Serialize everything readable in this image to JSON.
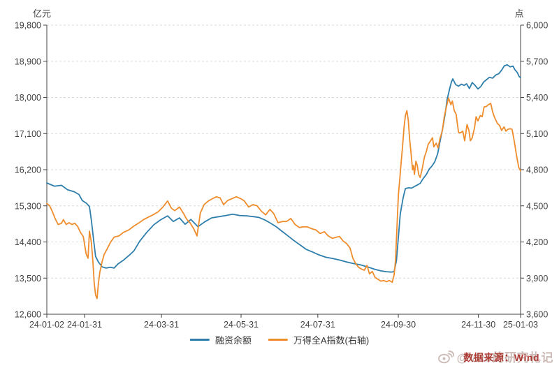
{
  "watermark": {
    "handle": "@Vito的研究札记",
    "source": "数据来源：Wind"
  },
  "chart_data": {
    "type": "line",
    "title": "",
    "grid": "horizontal-dashed",
    "legend_position": "bottom-center",
    "left_axis": {
      "label": "亿元",
      "min": 12600,
      "max": 19800,
      "tick_step": 900
    },
    "right_axis": {
      "label": "点",
      "min": 3600,
      "max": 6000,
      "tick_step": 300
    },
    "x_tick_labels": [
      "24-01-02",
      "24-01-31",
      "24-03-31",
      "24-05-31",
      "24-07-31",
      "24-09-30",
      "24-11-30",
      "25-01-03"
    ],
    "x_tick_pos": [
      0,
      0.0796,
      0.242,
      0.41,
      0.572,
      0.742,
      0.911,
      1
    ],
    "series": [
      {
        "name": "融资余额",
        "axis": "left",
        "color": "#2E7EAC",
        "points": [
          [
            0,
            15870
          ],
          [
            0.016,
            15790
          ],
          [
            0.031,
            15810
          ],
          [
            0.044,
            15700
          ],
          [
            0.058,
            15650
          ],
          [
            0.068,
            15580
          ],
          [
            0.075,
            15430
          ],
          [
            0.084,
            15360
          ],
          [
            0.09,
            15280
          ],
          [
            0.094,
            14950
          ],
          [
            0.099,
            14430
          ],
          [
            0.103,
            14040
          ],
          [
            0.109,
            13900
          ],
          [
            0.117,
            13780
          ],
          [
            0.125,
            13750
          ],
          [
            0.134,
            13770
          ],
          [
            0.142,
            13750
          ],
          [
            0.15,
            13850
          ],
          [
            0.161,
            13940
          ],
          [
            0.173,
            14060
          ],
          [
            0.184,
            14180
          ],
          [
            0.196,
            14420
          ],
          [
            0.211,
            14640
          ],
          [
            0.226,
            14830
          ],
          [
            0.24,
            14950
          ],
          [
            0.255,
            15050
          ],
          [
            0.267,
            14910
          ],
          [
            0.28,
            15000
          ],
          [
            0.292,
            14840
          ],
          [
            0.304,
            14960
          ],
          [
            0.319,
            14780
          ],
          [
            0.333,
            14900
          ],
          [
            0.348,
            15000
          ],
          [
            0.363,
            15030
          ],
          [
            0.378,
            15060
          ],
          [
            0.392,
            15090
          ],
          [
            0.407,
            15060
          ],
          [
            0.422,
            15050
          ],
          [
            0.437,
            15030
          ],
          [
            0.448,
            15010
          ],
          [
            0.46,
            14950
          ],
          [
            0.472,
            14870
          ],
          [
            0.484,
            14780
          ],
          [
            0.496,
            14670
          ],
          [
            0.507,
            14570
          ],
          [
            0.521,
            14440
          ],
          [
            0.534,
            14330
          ],
          [
            0.547,
            14220
          ],
          [
            0.561,
            14150
          ],
          [
            0.574,
            14080
          ],
          [
            0.589,
            14020
          ],
          [
            0.603,
            13990
          ],
          [
            0.618,
            13950
          ],
          [
            0.633,
            13900
          ],
          [
            0.648,
            13860
          ],
          [
            0.662,
            13830
          ],
          [
            0.677,
            13780
          ],
          [
            0.692,
            13720
          ],
          [
            0.705,
            13680
          ],
          [
            0.717,
            13660
          ],
          [
            0.727,
            13650
          ],
          [
            0.733,
            13660
          ],
          [
            0.738,
            13940
          ],
          [
            0.742,
            14510
          ],
          [
            0.746,
            15090
          ],
          [
            0.752,
            15500
          ],
          [
            0.757,
            15730
          ],
          [
            0.764,
            15750
          ],
          [
            0.77,
            15740
          ],
          [
            0.776,
            15780
          ],
          [
            0.782,
            15820
          ],
          [
            0.788,
            15860
          ],
          [
            0.794,
            15970
          ],
          [
            0.801,
            16080
          ],
          [
            0.807,
            16210
          ],
          [
            0.813,
            16290
          ],
          [
            0.819,
            16400
          ],
          [
            0.825,
            16600
          ],
          [
            0.83,
            16900
          ],
          [
            0.836,
            17250
          ],
          [
            0.841,
            17600
          ],
          [
            0.845,
            17950
          ],
          [
            0.85,
            18200
          ],
          [
            0.854,
            18380
          ],
          [
            0.857,
            18460
          ],
          [
            0.863,
            18320
          ],
          [
            0.869,
            18280
          ],
          [
            0.875,
            18330
          ],
          [
            0.881,
            18300
          ],
          [
            0.886,
            18340
          ],
          [
            0.892,
            18220
          ],
          [
            0.898,
            18370
          ],
          [
            0.904,
            18300
          ],
          [
            0.91,
            18210
          ],
          [
            0.916,
            18270
          ],
          [
            0.922,
            18380
          ],
          [
            0.928,
            18440
          ],
          [
            0.934,
            18500
          ],
          [
            0.941,
            18480
          ],
          [
            0.948,
            18560
          ],
          [
            0.954,
            18590
          ],
          [
            0.96,
            18680
          ],
          [
            0.966,
            18790
          ],
          [
            0.972,
            18810
          ],
          [
            0.978,
            18760
          ],
          [
            0.984,
            18780
          ],
          [
            0.988,
            18690
          ],
          [
            0.993,
            18620
          ],
          [
            0.997,
            18520
          ],
          [
            1,
            18490
          ]
        ]
      },
      {
        "name": "万得全A指数(右轴)",
        "axis": "right",
        "color": "#EF8D2C",
        "points": [
          [
            0,
            4520
          ],
          [
            0.006,
            4500
          ],
          [
            0.012,
            4450
          ],
          [
            0.018,
            4390
          ],
          [
            0.024,
            4345
          ],
          [
            0.031,
            4355
          ],
          [
            0.035,
            4385
          ],
          [
            0.041,
            4345
          ],
          [
            0.047,
            4360
          ],
          [
            0.053,
            4345
          ],
          [
            0.059,
            4355
          ],
          [
            0.065,
            4330
          ],
          [
            0.071,
            4280
          ],
          [
            0.077,
            4245
          ],
          [
            0.083,
            4100
          ],
          [
            0.087,
            4065
          ],
          [
            0.09,
            4290
          ],
          [
            0.094,
            4200
          ],
          [
            0.097,
            4050
          ],
          [
            0.1,
            3860
          ],
          [
            0.103,
            3760
          ],
          [
            0.106,
            3730
          ],
          [
            0.109,
            3860
          ],
          [
            0.112,
            3950
          ],
          [
            0.117,
            4040
          ],
          [
            0.121,
            4095
          ],
          [
            0.127,
            4140
          ],
          [
            0.134,
            4195
          ],
          [
            0.142,
            4240
          ],
          [
            0.152,
            4250
          ],
          [
            0.162,
            4280
          ],
          [
            0.173,
            4300
          ],
          [
            0.183,
            4330
          ],
          [
            0.193,
            4355
          ],
          [
            0.204,
            4385
          ],
          [
            0.214,
            4405
          ],
          [
            0.224,
            4425
          ],
          [
            0.235,
            4450
          ],
          [
            0.245,
            4490
          ],
          [
            0.255,
            4540
          ],
          [
            0.263,
            4480
          ],
          [
            0.27,
            4460
          ],
          [
            0.28,
            4490
          ],
          [
            0.288,
            4440
          ],
          [
            0.295,
            4390
          ],
          [
            0.302,
            4360
          ],
          [
            0.31,
            4310
          ],
          [
            0.317,
            4250
          ],
          [
            0.324,
            4440
          ],
          [
            0.332,
            4510
          ],
          [
            0.341,
            4540
          ],
          [
            0.35,
            4560
          ],
          [
            0.358,
            4575
          ],
          [
            0.366,
            4565
          ],
          [
            0.373,
            4510
          ],
          [
            0.382,
            4545
          ],
          [
            0.391,
            4560
          ],
          [
            0.4,
            4575
          ],
          [
            0.409,
            4560
          ],
          [
            0.417,
            4540
          ],
          [
            0.426,
            4490
          ],
          [
            0.435,
            4510
          ],
          [
            0.444,
            4500
          ],
          [
            0.453,
            4455
          ],
          [
            0.462,
            4425
          ],
          [
            0.471,
            4470
          ],
          [
            0.479,
            4435
          ],
          [
            0.488,
            4360
          ],
          [
            0.497,
            4370
          ],
          [
            0.506,
            4370
          ],
          [
            0.515,
            4395
          ],
          [
            0.524,
            4345
          ],
          [
            0.533,
            4320
          ],
          [
            0.541,
            4325
          ],
          [
            0.55,
            4325
          ],
          [
            0.559,
            4310
          ],
          [
            0.568,
            4300
          ],
          [
            0.577,
            4270
          ],
          [
            0.586,
            4285
          ],
          [
            0.594,
            4250
          ],
          [
            0.603,
            4230
          ],
          [
            0.611,
            4240
          ],
          [
            0.618,
            4245
          ],
          [
            0.625,
            4210
          ],
          [
            0.633,
            4185
          ],
          [
            0.64,
            4150
          ],
          [
            0.646,
            4065
          ],
          [
            0.652,
            4020
          ],
          [
            0.658,
            3990
          ],
          [
            0.664,
            3975
          ],
          [
            0.67,
            3965
          ],
          [
            0.676,
            4005
          ],
          [
            0.681,
            3935
          ],
          [
            0.687,
            3955
          ],
          [
            0.693,
            3905
          ],
          [
            0.699,
            3890
          ],
          [
            0.705,
            3875
          ],
          [
            0.711,
            3880
          ],
          [
            0.717,
            3870
          ],
          [
            0.723,
            3880
          ],
          [
            0.729,
            3865
          ],
          [
            0.733,
            3925
          ],
          [
            0.736,
            4045
          ],
          [
            0.739,
            4310
          ],
          [
            0.742,
            4585
          ],
          [
            0.745,
            4720
          ],
          [
            0.748,
            4860
          ],
          [
            0.751,
            5000
          ],
          [
            0.754,
            5150
          ],
          [
            0.757,
            5250
          ],
          [
            0.76,
            5290
          ],
          [
            0.763,
            5210
          ],
          [
            0.766,
            5050
          ],
          [
            0.769,
            4930
          ],
          [
            0.772,
            4800
          ],
          [
            0.774,
            4835
          ],
          [
            0.776,
            4760
          ],
          [
            0.779,
            4870
          ],
          [
            0.782,
            4835
          ],
          [
            0.785,
            4760
          ],
          [
            0.788,
            4735
          ],
          [
            0.792,
            4800
          ],
          [
            0.797,
            4905
          ],
          [
            0.801,
            4950
          ],
          [
            0.805,
            5010
          ],
          [
            0.81,
            5040
          ],
          [
            0.814,
            5065
          ],
          [
            0.817,
            4990
          ],
          [
            0.822,
            5020
          ],
          [
            0.826,
            4980
          ],
          [
            0.83,
            5060
          ],
          [
            0.835,
            5125
          ],
          [
            0.839,
            5240
          ],
          [
            0.844,
            5330
          ],
          [
            0.848,
            5395
          ],
          [
            0.853,
            5340
          ],
          [
            0.856,
            5370
          ],
          [
            0.86,
            5290
          ],
          [
            0.864,
            5260
          ],
          [
            0.869,
            5110
          ],
          [
            0.873,
            5105
          ],
          [
            0.878,
            5120
          ],
          [
            0.882,
            5040
          ],
          [
            0.887,
            5175
          ],
          [
            0.891,
            5125
          ],
          [
            0.894,
            5040
          ],
          [
            0.898,
            5065
          ],
          [
            0.903,
            5150
          ],
          [
            0.906,
            5240
          ],
          [
            0.91,
            5205
          ],
          [
            0.915,
            5250
          ],
          [
            0.919,
            5240
          ],
          [
            0.923,
            5320
          ],
          [
            0.928,
            5325
          ],
          [
            0.932,
            5340
          ],
          [
            0.937,
            5350
          ],
          [
            0.941,
            5280
          ],
          [
            0.945,
            5235
          ],
          [
            0.951,
            5185
          ],
          [
            0.956,
            5165
          ],
          [
            0.96,
            5125
          ],
          [
            0.965,
            5155
          ],
          [
            0.969,
            5120
          ],
          [
            0.973,
            5135
          ],
          [
            0.978,
            5140
          ],
          [
            0.982,
            5135
          ],
          [
            0.987,
            5030
          ],
          [
            0.991,
            4930
          ],
          [
            0.996,
            4820
          ],
          [
            1,
            4790
          ]
        ]
      }
    ]
  }
}
